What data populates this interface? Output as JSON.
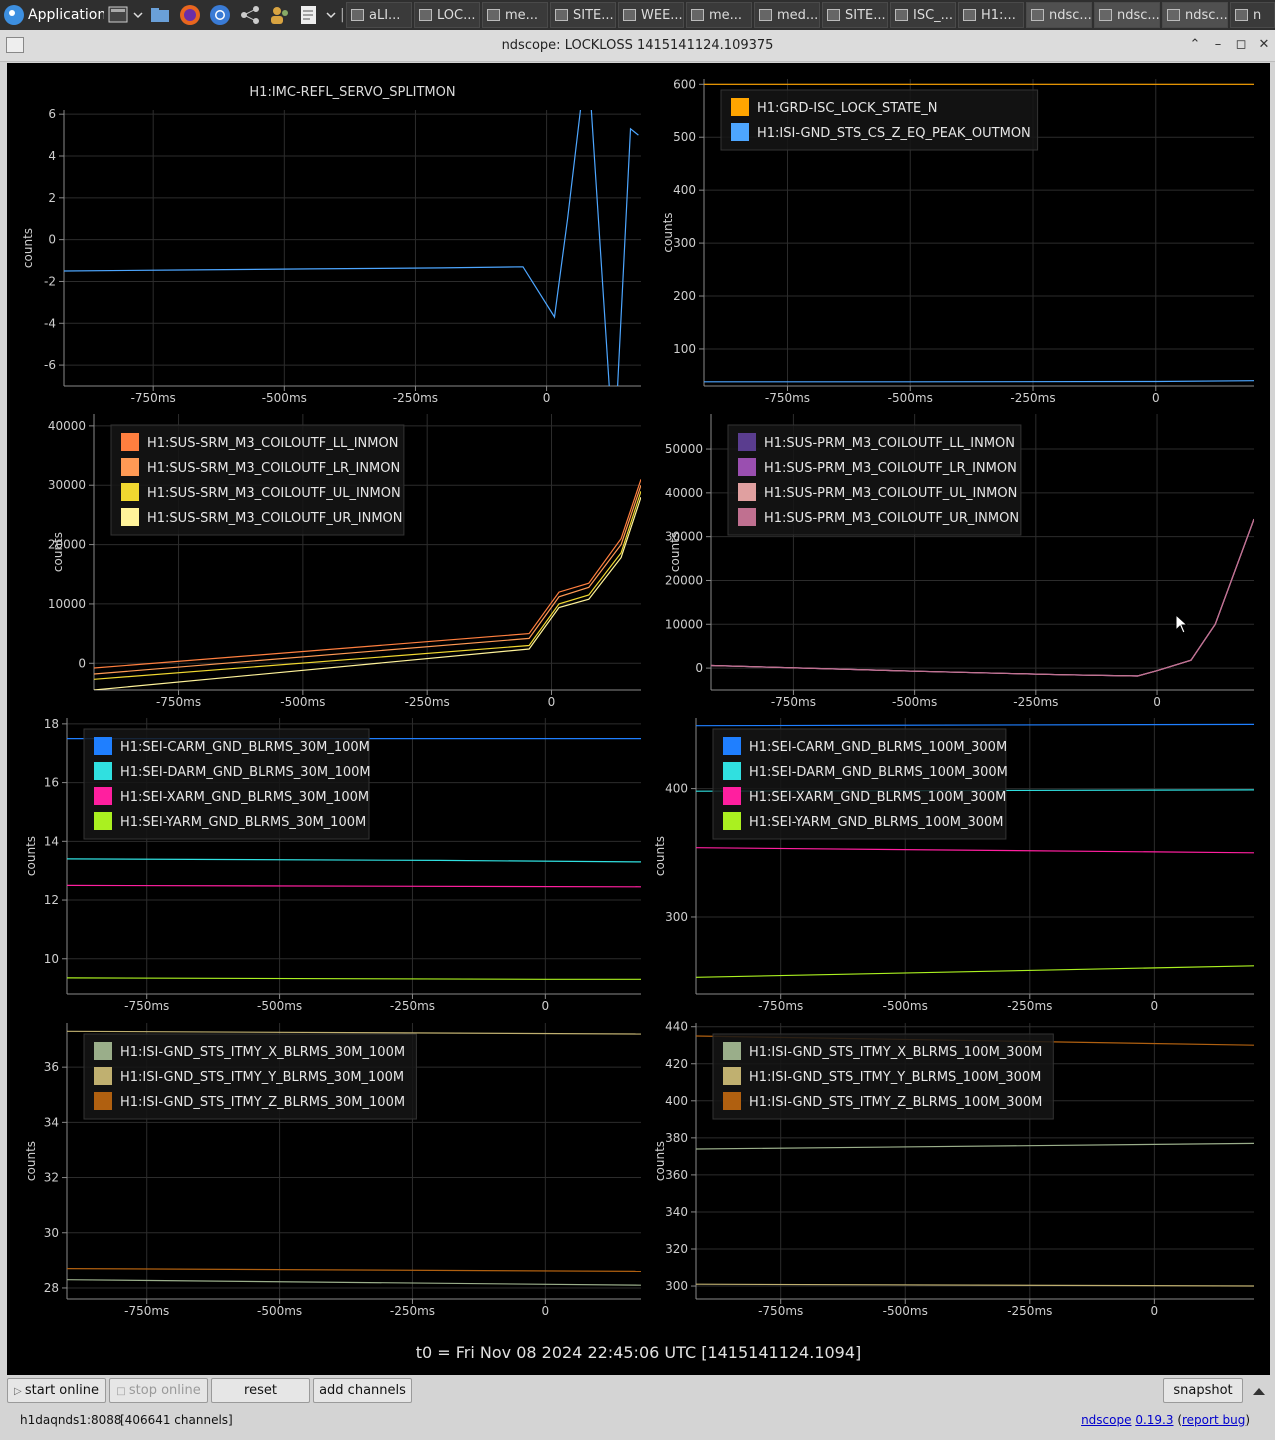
{
  "taskbar": {
    "menu_label": "Applications",
    "tasks": [
      {
        "label": "aLI..."
      },
      {
        "label": "LOC..."
      },
      {
        "label": "me..."
      },
      {
        "label": "SITE..."
      },
      {
        "label": "WEE..."
      },
      {
        "label": "me..."
      },
      {
        "label": "med..."
      },
      {
        "label": "SITE..."
      },
      {
        "label": "ISC_..."
      },
      {
        "label": "H1:..."
      },
      {
        "label": "ndsc..."
      },
      {
        "label": "ndsc..."
      },
      {
        "label": "ndsc..."
      },
      {
        "label": "n"
      }
    ]
  },
  "window": {
    "title": "ndscope: LOCKLOSS 1415141124.109375"
  },
  "plots": [
    {
      "title": "H1:IMC-REFL_SERVO_SPLITMON",
      "ylabel": "counts",
      "xticks": [
        "-750ms",
        "-500ms",
        "-250ms",
        "0"
      ],
      "yticks": [
        "6",
        "4",
        "2",
        "0",
        "-2",
        "-4",
        "-6"
      ],
      "legend": []
    },
    {
      "title": "",
      "ylabel": "counts",
      "xticks": [
        "-750ms",
        "-500ms",
        "-250ms",
        "0"
      ],
      "yticks": [
        "600",
        "500",
        "400",
        "300",
        "200",
        "100"
      ],
      "legend": [
        {
          "name": "H1:GRD-ISC_LOCK_STATE_N",
          "color": "#ffa500"
        },
        {
          "name": "H1:ISI-GND_STS_CS_Z_EQ_PEAK_OUTMON",
          "color": "#4da6ff"
        }
      ]
    },
    {
      "title": "",
      "ylabel": "counts",
      "xticks": [
        "-750ms",
        "-500ms",
        "-250ms",
        "0"
      ],
      "yticks": [
        "40000",
        "30000",
        "20000",
        "10000",
        "0"
      ],
      "legend": [
        {
          "name": "H1:SUS-SRM_M3_COILOUTF_LL_INMON",
          "color": "#ff7f3f"
        },
        {
          "name": "H1:SUS-SRM_M3_COILOUTF_LR_INMON",
          "color": "#ff9a55"
        },
        {
          "name": "H1:SUS-SRM_M3_COILOUTF_UL_INMON",
          "color": "#f0d830"
        },
        {
          "name": "H1:SUS-SRM_M3_COILOUTF_UR_INMON",
          "color": "#fff39a"
        }
      ]
    },
    {
      "title": "",
      "ylabel": "counts",
      "xticks": [
        "-750ms",
        "-500ms",
        "-250ms",
        "0"
      ],
      "yticks": [
        "50000",
        "40000",
        "30000",
        "20000",
        "10000",
        "0"
      ],
      "legend": [
        {
          "name": "H1:SUS-PRM_M3_COILOUTF_LL_INMON",
          "color": "#5a3d8f"
        },
        {
          "name": "H1:SUS-PRM_M3_COILOUTF_LR_INMON",
          "color": "#9a4fb0"
        },
        {
          "name": "H1:SUS-PRM_M3_COILOUTF_UL_INMON",
          "color": "#e0a0a0"
        },
        {
          "name": "H1:SUS-PRM_M3_COILOUTF_UR_INMON",
          "color": "#c07090"
        }
      ]
    },
    {
      "title": "",
      "ylabel": "counts",
      "xticks": [
        "-750ms",
        "-500ms",
        "-250ms",
        "0"
      ],
      "yticks": [
        "18",
        "16",
        "14",
        "12",
        "10"
      ],
      "legend": [
        {
          "name": "H1:SEI-CARM_GND_BLRMS_30M_100M",
          "color": "#1f7fff"
        },
        {
          "name": "H1:SEI-DARM_GND_BLRMS_30M_100M",
          "color": "#30e0e0"
        },
        {
          "name": "H1:SEI-XARM_GND_BLRMS_30M_100M",
          "color": "#ff1f9f"
        },
        {
          "name": "H1:SEI-YARM_GND_BLRMS_30M_100M",
          "color": "#aaf020"
        }
      ]
    },
    {
      "title": "",
      "ylabel": "counts",
      "xticks": [
        "-750ms",
        "-500ms",
        "-250ms",
        "0"
      ],
      "yticks": [
        "400",
        "300"
      ],
      "legend": [
        {
          "name": "H1:SEI-CARM_GND_BLRMS_100M_300M",
          "color": "#1f7fff"
        },
        {
          "name": "H1:SEI-DARM_GND_BLRMS_100M_300M",
          "color": "#30e0e0"
        },
        {
          "name": "H1:SEI-XARM_GND_BLRMS_100M_300M",
          "color": "#ff1f9f"
        },
        {
          "name": "H1:SEI-YARM_GND_BLRMS_100M_300M",
          "color": "#aaf020"
        }
      ]
    },
    {
      "title": "",
      "ylabel": "counts",
      "xticks": [
        "-750ms",
        "-500ms",
        "-250ms",
        "0"
      ],
      "yticks": [
        "36",
        "34",
        "32",
        "30",
        "28"
      ],
      "legend": [
        {
          "name": "H1:ISI-GND_STS_ITMY_X_BLRMS_30M_100M",
          "color": "#9aae8a"
        },
        {
          "name": "H1:ISI-GND_STS_ITMY_Y_BLRMS_30M_100M",
          "color": "#c0b070"
        },
        {
          "name": "H1:ISI-GND_STS_ITMY_Z_BLRMS_30M_100M",
          "color": "#b06010"
        }
      ]
    },
    {
      "title": "",
      "ylabel": "counts",
      "xticks": [
        "-750ms",
        "-500ms",
        "-250ms",
        "0"
      ],
      "yticks": [
        "440",
        "420",
        "400",
        "380",
        "360",
        "340",
        "320",
        "300"
      ],
      "legend": [
        {
          "name": "H1:ISI-GND_STS_ITMY_X_BLRMS_100M_300M",
          "color": "#9aae8a"
        },
        {
          "name": "H1:ISI-GND_STS_ITMY_Y_BLRMS_100M_300M",
          "color": "#c0b070"
        },
        {
          "name": "H1:ISI-GND_STS_ITMY_Z_BLRMS_100M_300M",
          "color": "#b06010"
        }
      ]
    }
  ],
  "chart_data": [
    {
      "type": "line",
      "ylabel": "counts",
      "xlim": [
        -0.92,
        0.18
      ],
      "ylim": [
        -7,
        6.2
      ],
      "grid": true,
      "series": [
        {
          "name": "H1:IMC-REFL_SERVO_SPLITMON",
          "color": "#4da6ff",
          "x": [
            -0.92,
            -0.7,
            -0.45,
            -0.2,
            -0.045,
            0.015,
            0.04,
            0.065,
            0.085,
            0.12,
            0.135,
            0.16,
            0.175
          ],
          "y": [
            -1.5,
            -1.45,
            -1.4,
            -1.35,
            -1.3,
            -3.7,
            1,
            6.3,
            6.3,
            -7.2,
            -7.2,
            5.3,
            5
          ]
        }
      ]
    },
    {
      "type": "line",
      "ylabel": "counts",
      "xlim": [
        -0.92,
        0.2
      ],
      "ylim": [
        30,
        610
      ],
      "legend": "top-left",
      "grid": true,
      "series": [
        {
          "name": "H1:GRD-ISC_LOCK_STATE_N",
          "color": "#ffa500",
          "x": [
            -0.92,
            0.2
          ],
          "y": [
            600,
            600
          ]
        },
        {
          "name": "H1:ISI-GND_STS_CS_Z_EQ_PEAK_OUTMON",
          "color": "#4da6ff",
          "x": [
            -0.92,
            -0.5,
            0,
            0.2
          ],
          "y": [
            38,
            38,
            38.5,
            40
          ]
        }
      ]
    },
    {
      "type": "line",
      "ylabel": "counts",
      "xlim": [
        -0.92,
        0.18
      ],
      "ylim": [
        -4500,
        42000
      ],
      "legend": "top-left",
      "grid": true,
      "series": [
        {
          "name": "H1:SUS-SRM_M3_COILOUTF_LL_INMON",
          "color": "#ff7f3f",
          "x": [
            -0.92,
            -0.045,
            0.015,
            0.075,
            0.14,
            0.18
          ],
          "y": [
            -800,
            5000,
            12000,
            13500,
            21000,
            31000
          ]
        },
        {
          "name": "H1:SUS-SRM_M3_COILOUTF_LR_INMON",
          "color": "#ff9a55",
          "x": [
            -0.92,
            -0.045,
            0.015,
            0.075,
            0.14,
            0.18
          ],
          "y": [
            -1800,
            4200,
            11200,
            12800,
            20000,
            30000
          ]
        },
        {
          "name": "H1:SUS-SRM_M3_COILOUTF_UL_INMON",
          "color": "#f0d830",
          "x": [
            -0.92,
            -0.045,
            0.015,
            0.075,
            0.14,
            0.18
          ],
          "y": [
            -2700,
            3000,
            10000,
            11500,
            18600,
            29000
          ]
        },
        {
          "name": "H1:SUS-SRM_M3_COILOUTF_UR_INMON",
          "color": "#fff39a",
          "x": [
            -0.92,
            -0.045,
            0.015,
            0.075,
            0.14,
            0.18
          ],
          "y": [
            -4500,
            2400,
            9400,
            10800,
            17800,
            28000
          ]
        }
      ]
    },
    {
      "type": "line",
      "ylabel": "counts",
      "xlim": [
        -0.92,
        0.2
      ],
      "ylim": [
        -5000,
        58000
      ],
      "legend": "top-left",
      "grid": true,
      "series": [
        {
          "name": "H1:SUS-PRM_M3_COILOUTF_LL_INMON",
          "color": "#5a3d8f",
          "x": [
            -0.92,
            -0.5,
            -0.2,
            -0.04,
            0,
            0.07,
            0.12,
            0.18,
            0.2
          ],
          "y": [
            600,
            -700,
            -1500,
            -1800,
            -600,
            1800,
            10000,
            28000,
            34000
          ]
        },
        {
          "name": "H1:SUS-PRM_M3_COILOUTF_LR_INMON",
          "color": "#9a4fb0",
          "x": [
            -0.92,
            -0.5,
            -0.2,
            -0.04,
            0,
            0.07,
            0.12,
            0.18,
            0.2
          ],
          "y": [
            600,
            -700,
            -1500,
            -1800,
            -600,
            1800,
            10000,
            28000,
            34000
          ]
        },
        {
          "name": "H1:SUS-PRM_M3_COILOUTF_UL_INMON",
          "color": "#e0a0a0",
          "x": [
            -0.92,
            -0.5,
            -0.2,
            -0.04,
            0,
            0.07,
            0.12,
            0.18,
            0.2
          ],
          "y": [
            600,
            -700,
            -1500,
            -1800,
            -600,
            1800,
            10000,
            28000,
            34000
          ]
        },
        {
          "name": "H1:SUS-PRM_M3_COILOUTF_UR_INMON",
          "color": "#c07090",
          "x": [
            -0.92,
            -0.5,
            -0.2,
            -0.04,
            0,
            0.07,
            0.12,
            0.18,
            0.2
          ],
          "y": [
            600,
            -700,
            -1500,
            -1800,
            -600,
            1800,
            10000,
            28000,
            34000
          ]
        }
      ]
    },
    {
      "type": "line",
      "ylabel": "counts",
      "xlim": [
        -0.9,
        0.18
      ],
      "ylim": [
        8.8,
        18.2
      ],
      "legend": "top-left",
      "grid": true,
      "series": [
        {
          "name": "H1:SEI-CARM_GND_BLRMS_30M_100M",
          "color": "#1f7fff",
          "x": [
            -0.9,
            0.18
          ],
          "y": [
            17.5,
            17.5
          ]
        },
        {
          "name": "H1:SEI-DARM_GND_BLRMS_30M_100M",
          "color": "#30e0e0",
          "x": [
            -0.9,
            -0.2,
            0.18
          ],
          "y": [
            13.4,
            13.35,
            13.3
          ]
        },
        {
          "name": "H1:SEI-XARM_GND_BLRMS_30M_100M",
          "color": "#ff1f9f",
          "x": [
            -0.9,
            0.18
          ],
          "y": [
            12.5,
            12.45
          ]
        },
        {
          "name": "H1:SEI-YARM_GND_BLRMS_30M_100M",
          "color": "#aaf020",
          "x": [
            -0.9,
            0,
            0.18
          ],
          "y": [
            9.35,
            9.3,
            9.3
          ]
        }
      ]
    },
    {
      "type": "line",
      "ylabel": "counts",
      "xlim": [
        -0.92,
        0.2
      ],
      "ylim": [
        240,
        455
      ],
      "legend": "top-left",
      "grid": true,
      "series": [
        {
          "name": "H1:SEI-CARM_GND_BLRMS_100M_300M",
          "color": "#1f7fff",
          "x": [
            -0.92,
            0.2
          ],
          "y": [
            449,
            450
          ]
        },
        {
          "name": "H1:SEI-DARM_GND_BLRMS_100M_300M",
          "color": "#30e0e0",
          "x": [
            -0.92,
            0.2
          ],
          "y": [
            398,
            399
          ]
        },
        {
          "name": "H1:SEI-XARM_GND_BLRMS_100M_300M",
          "color": "#ff1f9f",
          "x": [
            -0.92,
            0.2
          ],
          "y": [
            354,
            350
          ]
        },
        {
          "name": "H1:SEI-YARM_GND_BLRMS_100M_300M",
          "color": "#aaf020",
          "x": [
            -0.92,
            0.2
          ],
          "y": [
            253,
            262
          ]
        }
      ]
    },
    {
      "type": "line",
      "ylabel": "counts",
      "xlim": [
        -0.9,
        0.18
      ],
      "ylim": [
        27.6,
        37.6
      ],
      "legend": "top-left",
      "grid": true,
      "series": [
        {
          "name": "H1:ISI-GND_STS_ITMY_X_BLRMS_30M_100M",
          "color": "#9aae8a",
          "x": [
            -0.9,
            0.18
          ],
          "y": [
            28.3,
            28.1
          ]
        },
        {
          "name": "H1:ISI-GND_STS_ITMY_Y_BLRMS_30M_100M",
          "color": "#c0b070",
          "x": [
            -0.9,
            0.18
          ],
          "y": [
            37.3,
            37.2
          ]
        },
        {
          "name": "H1:ISI-GND_STS_ITMY_Z_BLRMS_30M_100M",
          "color": "#b06010",
          "x": [
            -0.9,
            0.18
          ],
          "y": [
            28.7,
            28.6
          ]
        }
      ]
    },
    {
      "type": "line",
      "ylabel": "counts",
      "xlim": [
        -0.92,
        0.2
      ],
      "ylim": [
        293,
        442
      ],
      "legend": "top-left",
      "grid": true,
      "series": [
        {
          "name": "H1:ISI-GND_STS_ITMY_X_BLRMS_100M_300M",
          "color": "#9aae8a",
          "x": [
            -0.92,
            0.2
          ],
          "y": [
            374,
            377
          ]
        },
        {
          "name": "H1:ISI-GND_STS_ITMY_Y_BLRMS_100M_300M",
          "color": "#c0b070",
          "x": [
            -0.92,
            0.2
          ],
          "y": [
            301,
            300
          ]
        },
        {
          "name": "H1:ISI-GND_STS_ITMY_Z_BLRMS_100M_300M",
          "color": "#b06010",
          "x": [
            -0.92,
            0.2
          ],
          "y": [
            435,
            430
          ]
        }
      ]
    }
  ],
  "t0_text": "t0 = Fri Nov 08 2024 22:45:06 UTC [1415141124.1094]",
  "toolbar": {
    "start_online": "start online",
    "stop_online": "stop online",
    "reset": "reset",
    "add_channels": "add channels",
    "snapshot": "snapshot"
  },
  "status": {
    "server": "h1daqnds1:8088",
    "channels": "[406641 channels]",
    "app_name": "ndscope",
    "version": "0.19.3",
    "report_bug": "report bug"
  }
}
